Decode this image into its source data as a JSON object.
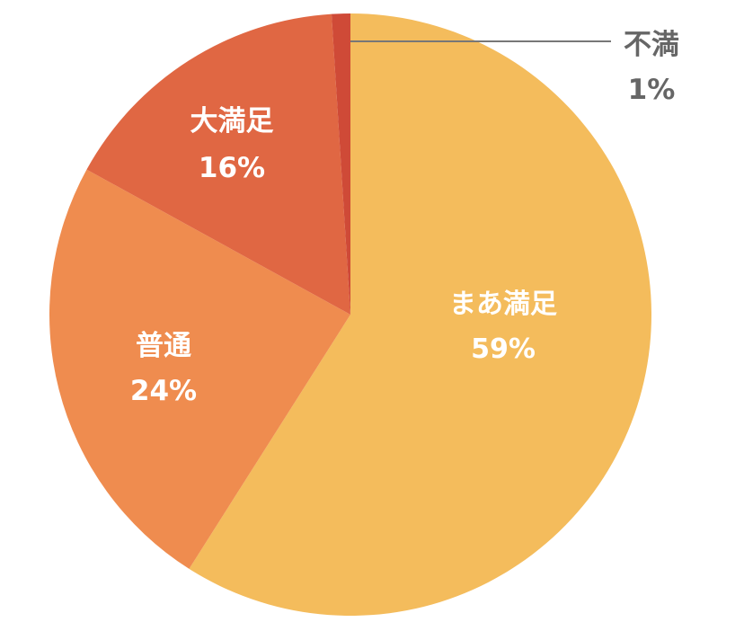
{
  "chart_data": {
    "type": "pie",
    "start_angle_deg": 0,
    "direction": "clockwise",
    "slices": [
      {
        "label": "まあ満足",
        "value": 59,
        "value_label": "59%",
        "color": "#F4BC5C",
        "label_color": "#ffffff"
      },
      {
        "label": "普通",
        "value": 24,
        "value_label": "24%",
        "color": "#EF8C4F",
        "label_color": "#ffffff"
      },
      {
        "label": "大満足",
        "value": 16,
        "value_label": "16%",
        "color": "#E06743",
        "label_color": "#ffffff"
      },
      {
        "label": "不満",
        "value": 1,
        "value_label": "1%",
        "color": "#CF4A37",
        "label_color": "#666666"
      }
    ],
    "legend": "none",
    "colors": {
      "leader_line": "#777777",
      "background": "#ffffff"
    }
  }
}
